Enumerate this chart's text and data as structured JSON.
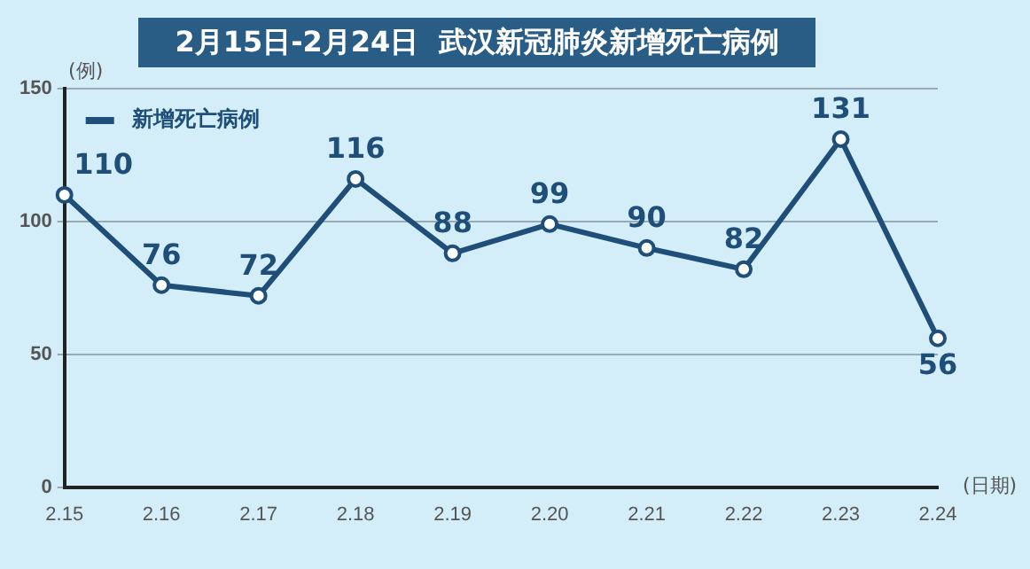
{
  "chart_data": {
    "type": "line",
    "title": "2月15日-2月24日  武汉新冠肺炎新增死亡病例",
    "ylabel": "(例)",
    "xlabel": "(日期)",
    "categories": [
      "2.15",
      "2.16",
      "2.17",
      "2.18",
      "2.19",
      "2.20",
      "2.21",
      "2.22",
      "2.23",
      "2.24"
    ],
    "series": [
      {
        "name": "新增死亡病例",
        "color": "#1f4e79",
        "values": [
          110,
          76,
          72,
          116,
          88,
          99,
          90,
          82,
          131,
          56
        ]
      }
    ],
    "ylim": [
      0,
      150
    ],
    "yticks": [
      0,
      50,
      100,
      150
    ],
    "grid": "y",
    "legend": "top left",
    "marker": "circle",
    "line_style": "solid",
    "data_labels": true
  }
}
